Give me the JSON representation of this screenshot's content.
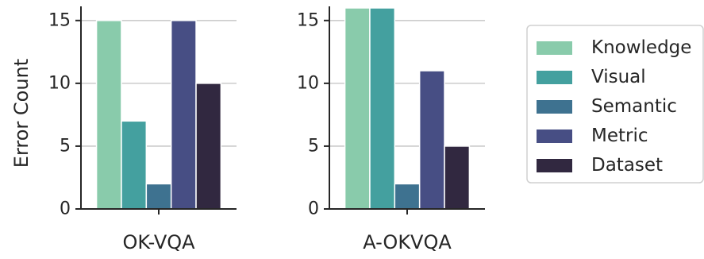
{
  "colors": {
    "Knowledge": "#89cbab",
    "Visual": "#44a09f",
    "Semantic": "#3e7290",
    "Metric": "#474e84",
    "Dataset": "#312840",
    "grid": "#cccccc",
    "axis": "#262626",
    "text": "#262626"
  },
  "chart_data": [
    {
      "type": "bar",
      "categories": [
        "OK-VQA"
      ],
      "series": [
        {
          "name": "Knowledge",
          "values": [
            15
          ]
        },
        {
          "name": "Visual",
          "values": [
            7
          ]
        },
        {
          "name": "Semantic",
          "values": [
            2
          ]
        },
        {
          "name": "Metric",
          "values": [
            15
          ]
        },
        {
          "name": "Dataset",
          "values": [
            10
          ]
        }
      ],
      "xlabel": "",
      "ylabel": "Error Count",
      "ylim": [
        0,
        16
      ],
      "yticks": [
        0,
        5,
        10,
        15
      ],
      "grid": true
    },
    {
      "type": "bar",
      "categories": [
        "A-OKVQA"
      ],
      "series": [
        {
          "name": "Knowledge",
          "values": [
            16
          ]
        },
        {
          "name": "Visual",
          "values": [
            16
          ]
        },
        {
          "name": "Semantic",
          "values": [
            2
          ]
        },
        {
          "name": "Metric",
          "values": [
            11
          ]
        },
        {
          "name": "Dataset",
          "values": [
            5
          ]
        }
      ],
      "xlabel": "",
      "ylabel": "",
      "ylim": [
        0,
        16
      ],
      "yticks": [
        0,
        5,
        10,
        15
      ],
      "grid": true
    }
  ],
  "legend": {
    "placement": "right",
    "entries": [
      "Knowledge",
      "Visual",
      "Semantic",
      "Metric",
      "Dataset"
    ]
  }
}
